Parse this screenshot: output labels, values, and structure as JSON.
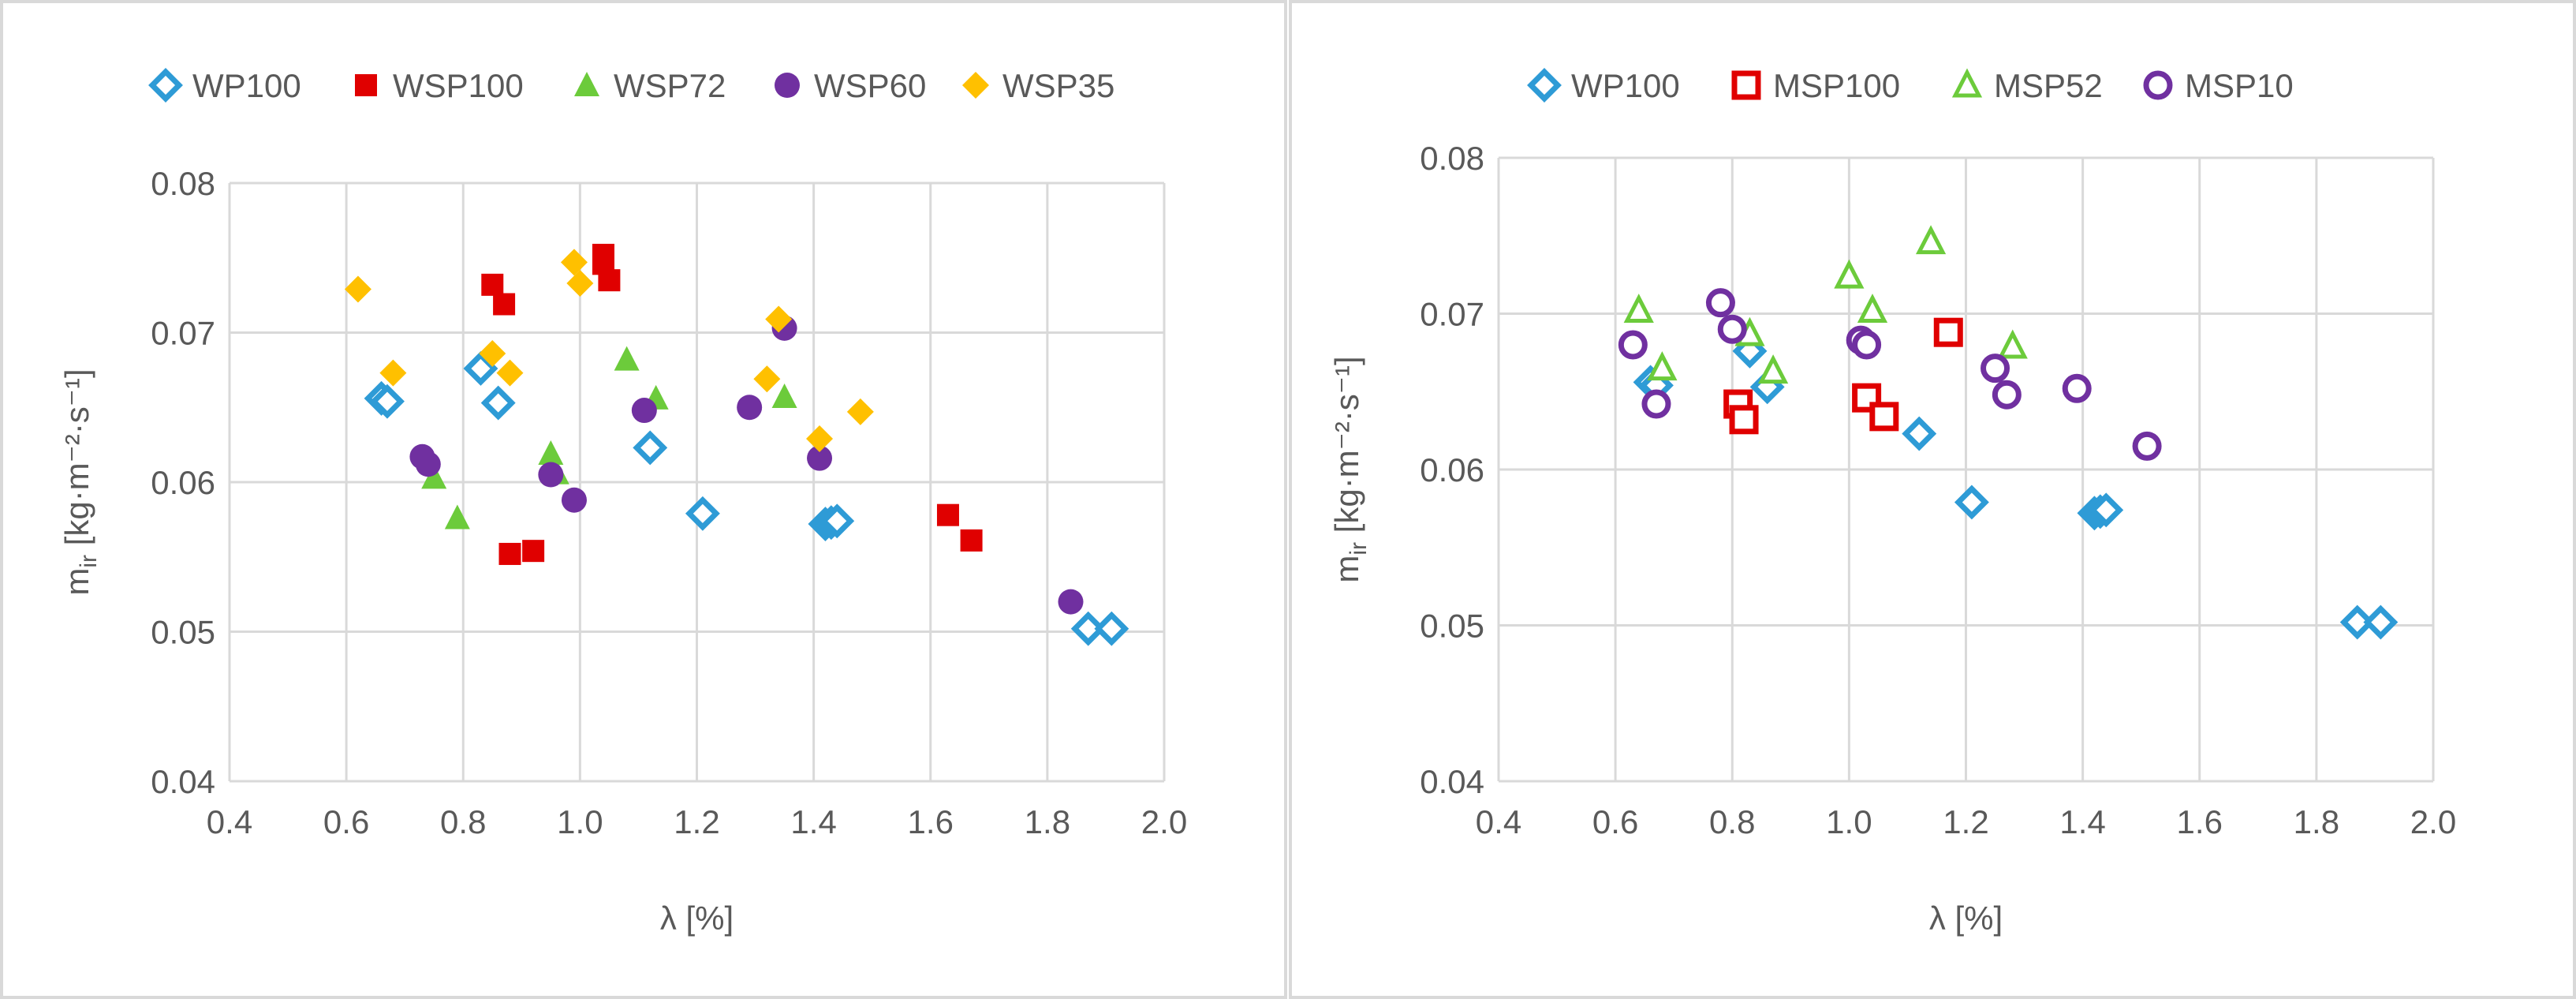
{
  "chart_data": [
    {
      "type": "scatter",
      "id": "left",
      "xlabel": "λ [%]",
      "ylabel": {
        "base": "m",
        "sub": "ir",
        "unit": " [kg·m⁻²·s⁻¹]"
      },
      "xlim": [
        0.4,
        2.0
      ],
      "ylim": [
        0.04,
        0.08
      ],
      "xticks": [
        "0.4",
        "0.6",
        "0.8",
        "1.0",
        "1.2",
        "1.4",
        "1.6",
        "1.8",
        "2.0"
      ],
      "yticks": [
        "0.04",
        "0.05",
        "0.06",
        "0.07",
        "0.08"
      ],
      "legend_position": "top",
      "series": [
        {
          "name": "WP100",
          "marker": "diamond-open",
          "color": "#2E9BD6",
          "x": [
            0.66,
            0.67,
            0.83,
            0.86,
            1.12,
            1.21,
            1.42,
            1.43,
            1.44,
            1.87,
            1.91
          ],
          "y": [
            0.0656,
            0.0654,
            0.0676,
            0.0653,
            0.0623,
            0.0579,
            0.0572,
            0.0573,
            0.0574,
            0.0502,
            0.0502
          ]
        },
        {
          "name": "WSP100",
          "marker": "square",
          "color": "#E00000",
          "x": [
            0.85,
            0.87,
            0.88,
            0.92,
            1.04,
            1.04,
            1.05,
            1.63,
            1.67
          ],
          "y": [
            0.0732,
            0.0719,
            0.0552,
            0.0554,
            0.0752,
            0.0746,
            0.0735,
            0.0578,
            0.0561
          ]
        },
        {
          "name": "WSP72",
          "marker": "triangle",
          "color": "#6CCB3B",
          "x": [
            0.75,
            0.79,
            0.95,
            0.96,
            1.08,
            1.13,
            1.35
          ],
          "y": [
            0.0603,
            0.0576,
            0.0619,
            0.0606,
            0.0682,
            0.0656,
            0.0657
          ]
        },
        {
          "name": "WSP60",
          "marker": "circle",
          "color": "#7030A0",
          "x": [
            0.73,
            0.74,
            0.95,
            0.99,
            1.11,
            1.29,
            1.35,
            1.41,
            1.84
          ],
          "y": [
            0.0617,
            0.0612,
            0.0605,
            0.0588,
            0.0648,
            0.065,
            0.0703,
            0.0616,
            0.052
          ]
        },
        {
          "name": "WSP35",
          "marker": "diamond",
          "color": "#FFC000",
          "x": [
            0.62,
            0.68,
            0.85,
            0.88,
            0.99,
            1.0,
            1.32,
            1.34,
            1.41,
            1.48
          ],
          "y": [
            0.0729,
            0.0673,
            0.0686,
            0.0673,
            0.0747,
            0.0733,
            0.0669,
            0.0709,
            0.0629,
            0.0647
          ]
        }
      ]
    },
    {
      "type": "scatter",
      "id": "right",
      "xlabel": "λ [%]",
      "ylabel": {
        "base": "m",
        "sub": "ir",
        "unit": " [kg·m⁻²·s⁻¹]"
      },
      "xlim": [
        0.4,
        2.0
      ],
      "ylim": [
        0.04,
        0.08
      ],
      "xticks": [
        "0.4",
        "0.6",
        "0.8",
        "1.0",
        "1.2",
        "1.4",
        "1.6",
        "1.8",
        "2.0"
      ],
      "yticks": [
        "0.04",
        "0.05",
        "0.06",
        "0.07",
        "0.08"
      ],
      "legend_position": "top",
      "series": [
        {
          "name": "WP100",
          "marker": "diamond-open",
          "color": "#2E9BD6",
          "x": [
            0.66,
            0.67,
            0.83,
            0.86,
            1.12,
            1.21,
            1.42,
            1.43,
            1.44,
            1.87,
            1.91
          ],
          "y": [
            0.0656,
            0.0654,
            0.0676,
            0.0653,
            0.0623,
            0.0579,
            0.0572,
            0.0573,
            0.0574,
            0.0502,
            0.0502
          ]
        },
        {
          "name": "MSP100",
          "marker": "square-open",
          "color": "#E00000",
          "x": [
            0.81,
            0.82,
            1.03,
            1.06,
            1.17
          ],
          "y": [
            0.0642,
            0.0632,
            0.0646,
            0.0634,
            0.0688
          ]
        },
        {
          "name": "MSP52",
          "marker": "triangle-open",
          "color": "#6CCB3B",
          "x": [
            0.64,
            0.68,
            0.83,
            0.87,
            1.0,
            1.04,
            1.14,
            1.28
          ],
          "y": [
            0.0702,
            0.0665,
            0.0687,
            0.0663,
            0.0724,
            0.0702,
            0.0746,
            0.0679
          ]
        },
        {
          "name": "MSP10",
          "marker": "circle-open",
          "color": "#7030A0",
          "x": [
            0.63,
            0.67,
            0.78,
            0.8,
            1.02,
            1.03,
            1.25,
            1.27,
            1.39,
            1.51
          ],
          "y": [
            0.068,
            0.0642,
            0.0707,
            0.069,
            0.0683,
            0.068,
            0.0665,
            0.0648,
            0.0652,
            0.0615
          ]
        }
      ]
    }
  ]
}
